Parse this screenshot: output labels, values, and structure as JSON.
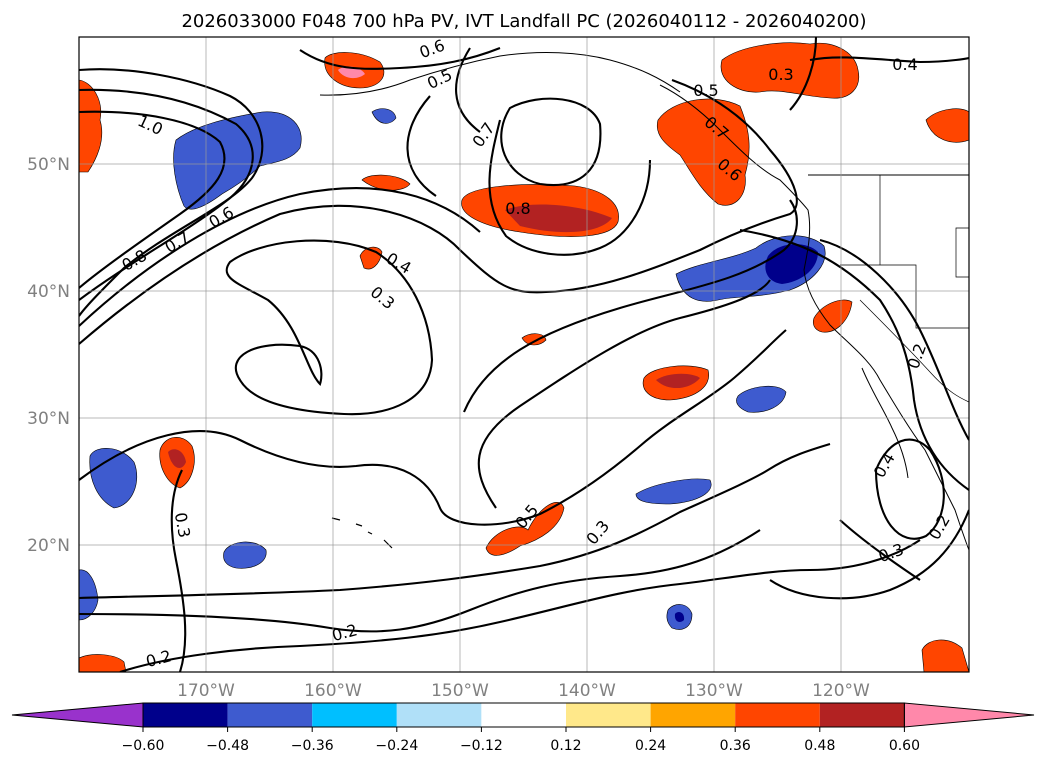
{
  "title": "2026033000 F048 700 hPa PV, IVT Landfall PC (2026040112 - 2026040200)",
  "map": {
    "lon_range": [
      -180,
      -110
    ],
    "lat_range": [
      10,
      60
    ],
    "lat_labels": [
      "50°N",
      "40°N",
      "30°N",
      "20°N"
    ],
    "lon_labels": [
      "170°W",
      "160°W",
      "150°W",
      "140°W",
      "130°W",
      "120°W"
    ],
    "contour_labels": [
      "0.6",
      "0.5",
      "1.0",
      "0.7",
      "0.6",
      "0.8",
      "0.7",
      "0.4",
      "0.3",
      "0.7",
      "0.8",
      "0.5",
      "0.6",
      "0.3",
      "0.4",
      "0.3",
      "0.5",
      "0.3",
      "0.2",
      "0.2",
      "0.4",
      "0.2",
      "0.3",
      "0.2"
    ]
  },
  "colorbar": {
    "ticks": [
      "−0.60",
      "−0.48",
      "−0.36",
      "−0.24",
      "−0.12",
      "0.12",
      "0.24",
      "0.36",
      "0.48",
      "0.60"
    ],
    "colors": {
      "under": "#9932cc",
      "bins": [
        "#00008b",
        "#3e5bcf",
        "#00bfff",
        "#b0e0f8",
        "#ffffff",
        "#ffe88a",
        "#ffa500",
        "#ff4500",
        "#b22222"
      ],
      "over": "#ff88aa"
    }
  }
}
